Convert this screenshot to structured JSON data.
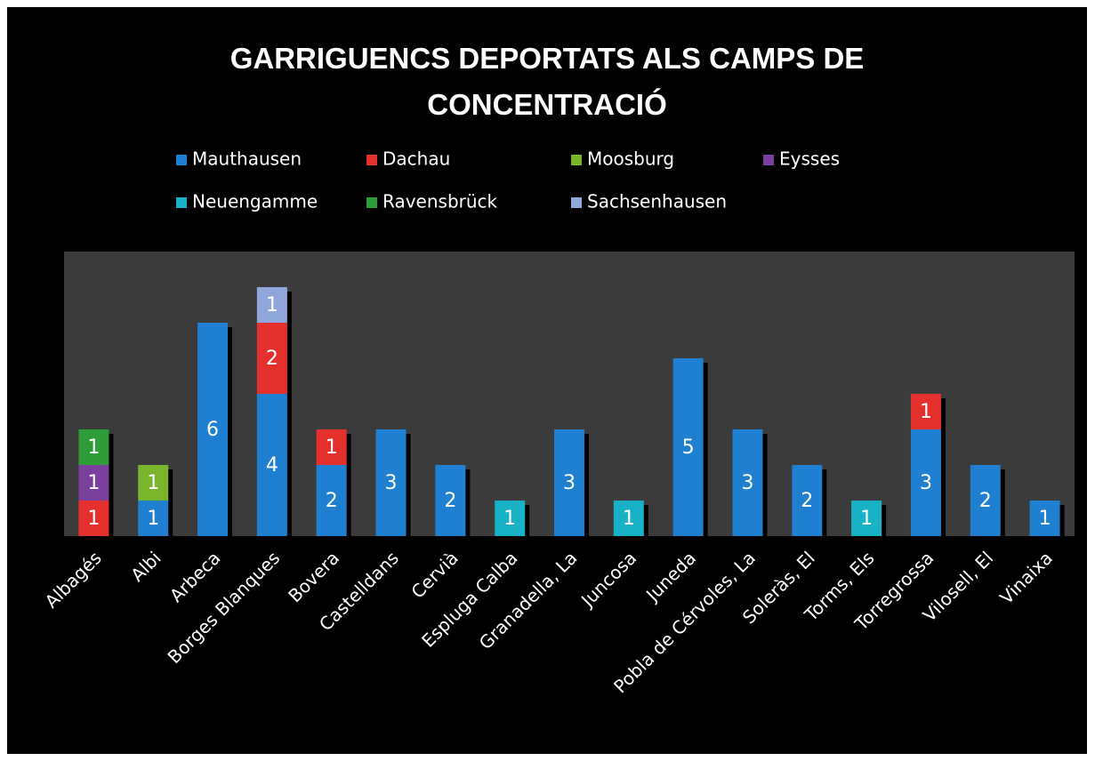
{
  "chart_data": {
    "type": "stacked_bar",
    "title": "GARRIGUENCS DEPORTATS ALS CAMPS DE CONCENTRACIÓ",
    "categories": [
      "Albagés",
      "Albi",
      "Arbeca",
      "Borges Blanques",
      "Bovera",
      "Castelldans",
      "Cervià",
      "Espluga Calba",
      "Granadella, La",
      "Juncosa",
      "Juneda",
      "Pobla de Cérvoles, La",
      "Soleràs, El",
      "Torms, Els",
      "Torregrossa",
      "Vilosell, El",
      "Vinaixa"
    ],
    "series": [
      {
        "name": "Mauthausen",
        "color": "#1f7fd0",
        "values": [
          null,
          1,
          6,
          4,
          2,
          3,
          2,
          null,
          3,
          null,
          5,
          3,
          2,
          null,
          3,
          2,
          1
        ]
      },
      {
        "name": "Dachau",
        "color": "#e5312e",
        "values": [
          1,
          null,
          null,
          2,
          1,
          null,
          null,
          null,
          null,
          null,
          null,
          null,
          null,
          null,
          1,
          null,
          null
        ]
      },
      {
        "name": "Moosburg",
        "color": "#79b52a",
        "values": [
          null,
          1,
          null,
          null,
          null,
          null,
          null,
          null,
          null,
          null,
          null,
          null,
          null,
          null,
          null,
          null,
          null
        ]
      },
      {
        "name": "Eysses",
        "color": "#7b3f9e",
        "values": [
          1,
          null,
          null,
          null,
          null,
          null,
          null,
          null,
          null,
          null,
          null,
          null,
          null,
          null,
          null,
          null,
          null
        ]
      },
      {
        "name": "Neuengamme",
        "color": "#19b1c6",
        "values": [
          null,
          null,
          null,
          null,
          null,
          null,
          null,
          1,
          null,
          1,
          null,
          null,
          null,
          1,
          null,
          null,
          null
        ]
      },
      {
        "name": "Ravensbrück",
        "color": "#2f9c3a",
        "values": [
          1,
          null,
          null,
          null,
          null,
          null,
          null,
          null,
          null,
          null,
          null,
          null,
          null,
          null,
          null,
          null,
          null
        ]
      },
      {
        "name": "Sachsenhausen",
        "color": "#8fa7da",
        "values": [
          null,
          null,
          null,
          1,
          null,
          null,
          null,
          null,
          null,
          null,
          null,
          null,
          null,
          null,
          null,
          null,
          null
        ]
      }
    ],
    "ylim": [
      0,
      8
    ]
  }
}
